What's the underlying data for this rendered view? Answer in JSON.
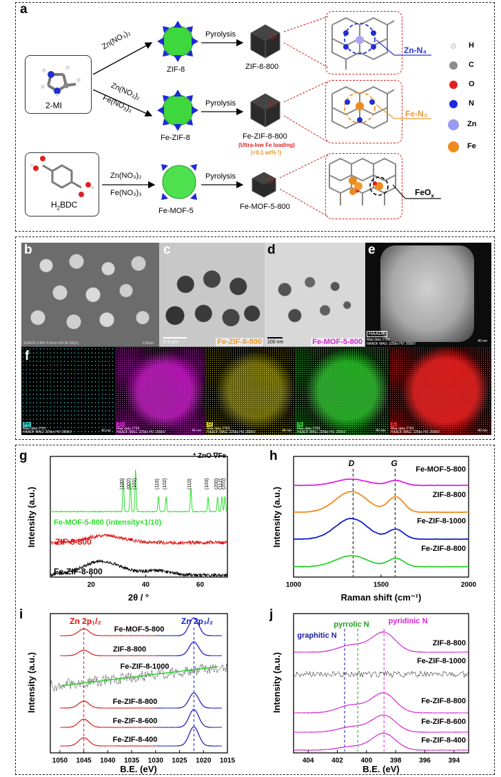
{
  "panel_a": {
    "label": "a",
    "precursors": {
      "mi": "2-MI",
      "bdc": "H",
      "bdc_sub": "2",
      "bdc_rest": "BDC"
    },
    "reagents": {
      "r1": "Zn(NO₃)₂",
      "r2a": "Zn(NO₃)₂",
      "r2b": "Fe(NO₃)₃",
      "r3a": "Zn(NO₃)₂",
      "r3b": "Fe(NO₃)₃"
    },
    "pyrolysis": "Pyrolysis",
    "frameworks": [
      "ZIF-8",
      "Fe-ZIF-8",
      "Fe-MOF-5"
    ],
    "products": [
      "ZIF-8-800",
      "Fe-ZIF-8-800",
      "Fe-MOF-5-800"
    ],
    "note_line1": "(Ultra-low Fe loading)",
    "note_line2": "(<0.1 wt% !)",
    "sites": {
      "znn4": "Zn-N₄",
      "fen3": "Fe-N₃",
      "feox": "FeO",
      "feox_sub": "x"
    },
    "legend": [
      {
        "label": "H",
        "color": "#e6e6e6"
      },
      {
        "label": "C",
        "color": "#8c8c8c"
      },
      {
        "label": "O",
        "color": "#e02020"
      },
      {
        "label": "N",
        "color": "#1c2ad8"
      },
      {
        "label": "Zn",
        "color": "#9a9af0"
      },
      {
        "label": "Fe",
        "color": "#f08a1c"
      }
    ]
  },
  "panel_bcdef": {
    "labels": [
      "b",
      "c",
      "d",
      "e",
      "f"
    ],
    "b_caption": "SU8010 3.0kV 5.0mm x50.0k SE(U)",
    "b_scale": "1.00µm",
    "c_scale": "0.2 µm",
    "c_name": "Fe-ZIF-8-800",
    "d_scale": "100 nm",
    "d_name": "Fe-MOF-5-800",
    "e_tag": "HAADF",
    "e_caption1": "Map data 2793",
    "e_caption2": "HAADF MAG: 225kx HV: 200kV",
    "e_scale": "40 nm",
    "maps": [
      {
        "el": "Fe",
        "color": "#2fd0c8"
      },
      {
        "el": "Zn",
        "color": "#d020d0"
      },
      {
        "el": "O",
        "color": "#d8d020"
      },
      {
        "el": "N",
        "color": "#30c030"
      },
      {
        "el": "C",
        "color": "#e02020"
      }
    ],
    "map_caption1": "Map data 2793",
    "map_caption2": "HAADF MAG: 225kx HV: 200kV",
    "map_scale": "40 nm"
  },
  "chart_data": [
    {
      "panel": "g",
      "type": "line",
      "xlabel": "2θ / °",
      "ylabel": "Intensity (a.u.)",
      "xlim": [
        5,
        70
      ],
      "xticks": [
        "20",
        "40",
        "60"
      ],
      "legend_note": "* ZnO  ∇Fe",
      "series": [
        {
          "name": "Fe-MOF-5-800 (intensity×1/10)",
          "color": "#2adf2a",
          "peaks": [
            31.8,
            34.4,
            36.3,
            44.7,
            47.5,
            56.6,
            62.9,
            66.4,
            68.0,
            69.1
          ]
        },
        {
          "name": "ZIF-8-800",
          "color": "#e01010"
        },
        {
          "name": "Fe-ZIF-8-800",
          "color": "#000000"
        }
      ],
      "peak_labels": [
        "(100)",
        "(002)",
        "(101)",
        "(110)",
        "(102)",
        "(110)",
        "(103)",
        "(200)",
        "(112)",
        "(201)"
      ]
    },
    {
      "panel": "h",
      "type": "line",
      "xlabel": "Raman shift (cm⁻¹)",
      "ylabel": "Intensity (a.u.)",
      "xlim": [
        1000,
        2000
      ],
      "xticks": [
        "1000",
        "1500",
        "2000"
      ],
      "band_labels": [
        "D",
        "G"
      ],
      "bands": [
        1340,
        1580
      ],
      "series": [
        {
          "name": "Fe-MOF-5-800",
          "color": "#e020e0"
        },
        {
          "name": "ZIF-8-800",
          "color": "#f08a1c"
        },
        {
          "name": "Fe-ZIF-8-1000",
          "color": "#1020d0"
        },
        {
          "name": "Fe-ZIF-8-800",
          "color": "#30d030"
        }
      ]
    },
    {
      "panel": "i",
      "type": "line",
      "xlabel": "B.E. (eV)",
      "ylabel": "Intensity (a.u.)",
      "xlim": [
        1052,
        1015
      ],
      "xticks": [
        "1050",
        "1045",
        "1040",
        "1035",
        "1030",
        "1025",
        "1020",
        "1015"
      ],
      "peaks": {
        "zn2p12": 1045.0,
        "zn2p32": 1022.0
      },
      "peak_label_12": "Zn 2p₁/₂",
      "peak_label_32": "Zn 2p₃/₂",
      "series": [
        {
          "name": "Fe-MOF-5-800"
        },
        {
          "name": "ZIF-8-800"
        },
        {
          "name": "Fe-ZIF-8-1000"
        },
        {
          "name": "Fe-ZIF-8-800"
        },
        {
          "name": "Fe-ZIF-8-600"
        },
        {
          "name": "Fe-ZIF-8-400"
        }
      ]
    },
    {
      "panel": "j",
      "type": "line",
      "xlabel": "B.E. (eV)",
      "ylabel": "Intensity (a.u.)",
      "xlim": [
        405,
        393
      ],
      "xticks": [
        "404",
        "402",
        "400",
        "398",
        "396",
        "394"
      ],
      "components": [
        {
          "name": "graphitic N",
          "be": 401.5,
          "color": "#1a1aa0"
        },
        {
          "name": "pyrrolic N",
          "be": 400.6,
          "color": "#20a020"
        },
        {
          "name": "pyridinic N",
          "be": 398.8,
          "color": "#e020e0"
        }
      ],
      "series": [
        {
          "name": "ZIF-8-800"
        },
        {
          "name": "Fe-ZIF-8-1000"
        },
        {
          "name": "Fe-ZIF-8-800"
        },
        {
          "name": "Fe-ZIF-8-600"
        },
        {
          "name": "Fe-ZIF-8-400"
        }
      ]
    }
  ]
}
